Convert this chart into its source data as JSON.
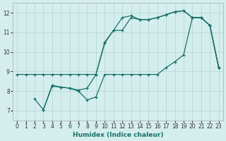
{
  "xlabel": "Humidex (Indice chaleur)",
  "background_color": "#d4eeed",
  "grid_color": "#b8d8d4",
  "line_color": "#1a7068",
  "xlim": [
    -0.5,
    23.5
  ],
  "ylim": [
    6.5,
    12.5
  ],
  "yticks": [
    7,
    8,
    9,
    10,
    11,
    12
  ],
  "xticks": [
    0,
    1,
    2,
    3,
    4,
    5,
    6,
    7,
    8,
    9,
    10,
    11,
    12,
    13,
    14,
    15,
    16,
    17,
    18,
    19,
    20,
    21,
    22,
    23
  ],
  "line1_x": [
    0,
    1,
    2,
    3,
    4,
    5,
    6,
    7,
    8,
    9,
    10,
    11,
    12,
    13,
    14,
    15,
    16,
    17,
    18,
    19,
    20,
    21,
    22,
    23
  ],
  "line1_y": [
    8.85,
    8.85,
    8.85,
    8.85,
    8.85,
    8.85,
    8.85,
    8.85,
    8.85,
    8.85,
    10.5,
    11.1,
    11.1,
    11.75,
    11.65,
    11.65,
    11.75,
    11.9,
    12.05,
    12.1,
    11.75,
    11.75,
    11.35,
    9.2
  ],
  "line2_x": [
    2,
    3,
    4,
    5,
    6,
    7,
    8,
    9,
    10,
    11,
    12,
    13,
    14,
    15,
    16,
    17,
    18,
    19,
    20,
    21,
    22,
    23
  ],
  "line2_y": [
    7.6,
    7.05,
    8.25,
    8.2,
    8.15,
    8.0,
    7.55,
    7.7,
    8.85,
    8.85,
    8.85,
    8.85,
    8.85,
    8.85,
    8.85,
    9.2,
    9.5,
    9.85,
    11.75,
    11.75,
    11.35,
    9.2
  ],
  "line3_x": [
    3,
    4,
    5,
    6,
    7,
    8,
    9,
    10,
    11,
    12,
    13,
    14,
    15,
    16,
    17,
    18,
    19,
    20,
    21,
    22,
    23
  ],
  "line3_y": [
    7.05,
    8.3,
    8.2,
    8.15,
    8.05,
    8.15,
    8.85,
    10.45,
    11.1,
    11.75,
    11.85,
    11.65,
    11.65,
    11.75,
    11.9,
    12.05,
    12.1,
    11.75,
    11.75,
    11.35,
    9.2
  ]
}
